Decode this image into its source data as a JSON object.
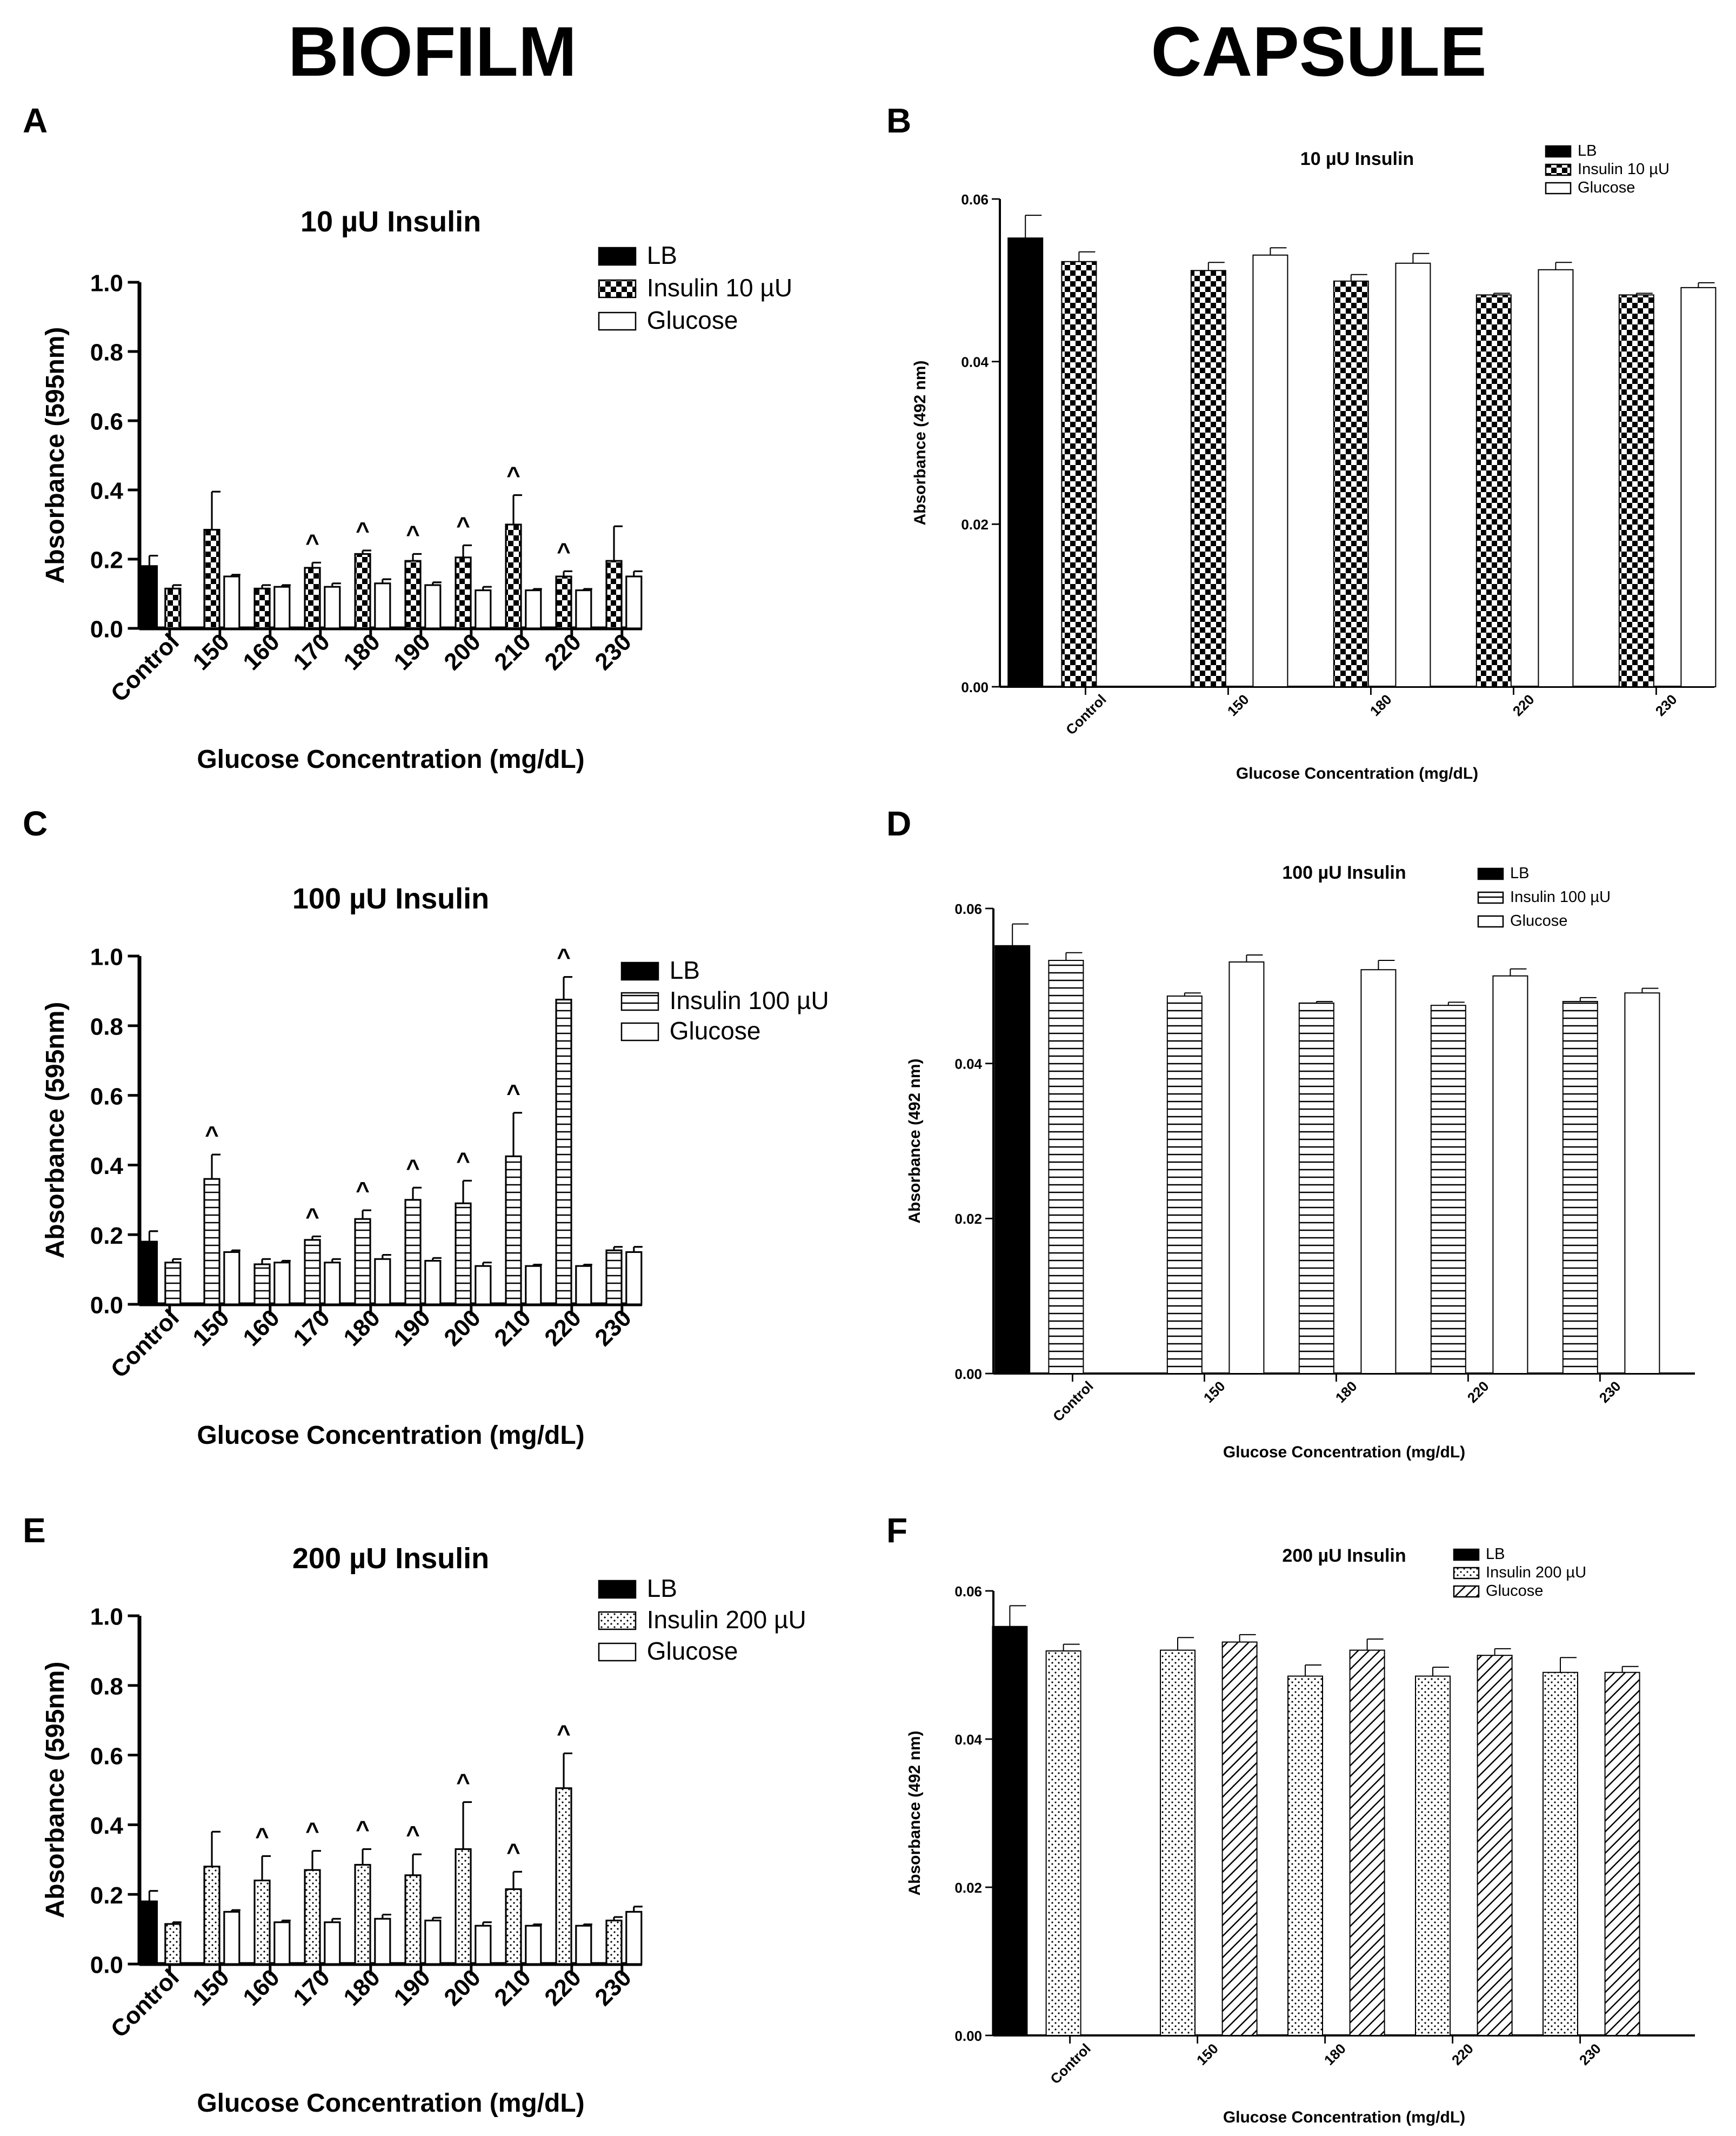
{
  "headers": {
    "left": "BIOFILM",
    "right": "CAPSULE"
  },
  "panels": [
    {
      "label": "A",
      "side": "left"
    },
    {
      "label": "B",
      "side": "right"
    },
    {
      "label": "C",
      "side": "left"
    },
    {
      "label": "D",
      "side": "right"
    },
    {
      "label": "E",
      "side": "left"
    },
    {
      "label": "F",
      "side": "right"
    }
  ],
  "colors": {
    "lb": "#000000",
    "axis": "#000000",
    "bar_outline": "#000000",
    "glucose": "#ffffff"
  },
  "chart_data": [
    {
      "panel": "A",
      "type": "bar",
      "title": "10 µU Insulin",
      "xlabel": "Glucose Concentration (mg/dL)",
      "ylabel": "Absorbance (595nm)",
      "ylim": [
        0,
        1.0
      ],
      "yticks": [
        "0.0",
        "0.2",
        "0.4",
        "0.6",
        "0.8",
        "1.0"
      ],
      "categories": [
        "Control",
        "150",
        "160",
        "170",
        "180",
        "190",
        "200",
        "210",
        "220",
        "230"
      ],
      "series": [
        {
          "name": "LB",
          "pattern": "solid",
          "values": [
            0.18,
            null,
            null,
            null,
            null,
            null,
            null,
            null,
            null,
            null
          ],
          "errors": [
            0.03,
            null,
            null,
            null,
            null,
            null,
            null,
            null,
            null,
            null
          ]
        },
        {
          "name": "Insulin 10 µU",
          "pattern": "checker",
          "values": [
            0.115,
            0.285,
            0.115,
            0.175,
            0.215,
            0.195,
            0.205,
            0.3,
            0.15,
            0.195
          ],
          "errors": [
            0.01,
            0.11,
            0.01,
            0.015,
            0.01,
            0.02,
            0.035,
            0.085,
            0.015,
            0.1
          ]
        },
        {
          "name": "Glucose",
          "pattern": "open",
          "values": [
            null,
            0.15,
            0.12,
            0.12,
            0.13,
            0.125,
            0.11,
            0.11,
            0.11,
            0.15
          ],
          "errors": [
            null,
            0.005,
            0.005,
            0.01,
            0.012,
            0.008,
            0.01,
            0.004,
            0.004,
            0.015
          ]
        }
      ],
      "annotations": [
        {
          "category": "170",
          "text": "^"
        },
        {
          "category": "180",
          "text": "^"
        },
        {
          "category": "190",
          "text": "^"
        },
        {
          "category": "200",
          "text": "^"
        },
        {
          "category": "210",
          "text": "^"
        },
        {
          "category": "220",
          "text": "^"
        }
      ]
    },
    {
      "panel": "B",
      "type": "bar",
      "title": "10 µU Insulin",
      "xlabel": "Glucose Concentration (mg/dL)",
      "ylabel": "Absorbance (492 nm)",
      "ylim": [
        0,
        0.06
      ],
      "yticks": [
        "0.00",
        "0.02",
        "0.04",
        "0.06"
      ],
      "categories": [
        "Control",
        "150",
        "180",
        "220",
        "230"
      ],
      "series": [
        {
          "name": "LB",
          "pattern": "solid",
          "values": [
            0.0552,
            null,
            null,
            null,
            null
          ],
          "errors": [
            0.0028,
            null,
            null,
            null,
            null
          ]
        },
        {
          "name": "Insulin 10 µU",
          "pattern": "checker",
          "values": [
            0.0523,
            0.0512,
            0.0499,
            0.0482,
            0.0482
          ],
          "errors": [
            0.0012,
            0.001,
            0.0008,
            0.0002,
            0.0002
          ]
        },
        {
          "name": "Glucose",
          "pattern": "open",
          "values": [
            null,
            0.0531,
            0.0521,
            0.0513,
            0.0491
          ],
          "errors": [
            null,
            0.0009,
            0.0012,
            0.0009,
            0.0006
          ]
        }
      ],
      "annotations": []
    },
    {
      "panel": "C",
      "type": "bar",
      "title": "100 µU Insulin",
      "xlabel": "Glucose Concentration (mg/dL)",
      "ylabel": "Absorbance (595nm)",
      "ylim": [
        0,
        1.0
      ],
      "yticks": [
        "0.0",
        "0.2",
        "0.4",
        "0.6",
        "0.8",
        "1.0"
      ],
      "categories": [
        "Control",
        "150",
        "160",
        "170",
        "180",
        "190",
        "200",
        "210",
        "220",
        "230"
      ],
      "series": [
        {
          "name": "LB",
          "pattern": "solid",
          "values": [
            0.18,
            null,
            null,
            null,
            null,
            null,
            null,
            null,
            null,
            null
          ],
          "errors": [
            0.03,
            null,
            null,
            null,
            null,
            null,
            null,
            null,
            null,
            null
          ]
        },
        {
          "name": "Insulin 100 µU",
          "pattern": "hlines",
          "values": [
            0.12,
            0.36,
            0.115,
            0.185,
            0.245,
            0.3,
            0.29,
            0.425,
            0.875,
            0.155
          ],
          "errors": [
            0.01,
            0.07,
            0.015,
            0.01,
            0.025,
            0.035,
            0.065,
            0.125,
            0.065,
            0.01
          ]
        },
        {
          "name": "Glucose",
          "pattern": "open",
          "values": [
            null,
            0.15,
            0.12,
            0.12,
            0.13,
            0.125,
            0.11,
            0.11,
            0.11,
            0.15
          ],
          "errors": [
            null,
            0.005,
            0.005,
            0.01,
            0.012,
            0.008,
            0.01,
            0.004,
            0.004,
            0.015
          ]
        }
      ],
      "annotations": [
        {
          "category": "150",
          "text": "^"
        },
        {
          "category": "170",
          "text": "^"
        },
        {
          "category": "180",
          "text": "^"
        },
        {
          "category": "190",
          "text": "^"
        },
        {
          "category": "200",
          "text": "^"
        },
        {
          "category": "210",
          "text": "^"
        },
        {
          "category": "220",
          "text": "^"
        }
      ]
    },
    {
      "panel": "D",
      "type": "bar",
      "title": "100 µU Insulin",
      "xlabel": "Glucose Concentration (mg/dL)",
      "ylabel": "Absorbance (492 nm)",
      "ylim": [
        0,
        0.06
      ],
      "yticks": [
        "0.00",
        "0.02",
        "0.04",
        "0.06"
      ],
      "categories": [
        "Control",
        "150",
        "180",
        "220",
        "230"
      ],
      "series": [
        {
          "name": "LB",
          "pattern": "solid",
          "values": [
            0.0552,
            null,
            null,
            null,
            null
          ],
          "errors": [
            0.0028,
            null,
            null,
            null,
            null
          ]
        },
        {
          "name": "Insulin 100 µU",
          "pattern": "hlines",
          "values": [
            0.0533,
            0.0487,
            0.0478,
            0.0475,
            0.048
          ],
          "errors": [
            0.001,
            0.0004,
            0.0002,
            0.0004,
            0.0005
          ]
        },
        {
          "name": "Glucose",
          "pattern": "open",
          "values": [
            null,
            0.0531,
            0.0521,
            0.0513,
            0.0491
          ],
          "errors": [
            null,
            0.0009,
            0.0012,
            0.0009,
            0.0006
          ]
        }
      ],
      "annotations": []
    },
    {
      "panel": "E",
      "type": "bar",
      "title": "200 µU Insulin",
      "xlabel": "Glucose Concentration (mg/dL)",
      "ylabel": "Absorbance (595nm)",
      "ylim": [
        0,
        1.0
      ],
      "yticks": [
        "0.0",
        "0.2",
        "0.4",
        "0.6",
        "0.8",
        "1.0"
      ],
      "categories": [
        "Control",
        "150",
        "160",
        "170",
        "180",
        "190",
        "200",
        "210",
        "220",
        "230"
      ],
      "series": [
        {
          "name": "LB",
          "pattern": "solid",
          "values": [
            0.18,
            null,
            null,
            null,
            null,
            null,
            null,
            null,
            null,
            null
          ],
          "errors": [
            0.03,
            null,
            null,
            null,
            null,
            null,
            null,
            null,
            null,
            null
          ]
        },
        {
          "name": "Insulin 200 µU",
          "pattern": "dots",
          "values": [
            0.115,
            0.28,
            0.24,
            0.27,
            0.285,
            0.255,
            0.33,
            0.215,
            0.505,
            0.125
          ],
          "errors": [
            0.005,
            0.1,
            0.07,
            0.055,
            0.045,
            0.06,
            0.135,
            0.05,
            0.1,
            0.01
          ]
        },
        {
          "name": "Glucose",
          "pattern": "open",
          "values": [
            null,
            0.15,
            0.12,
            0.12,
            0.13,
            0.125,
            0.11,
            0.11,
            0.11,
            0.15
          ],
          "errors": [
            null,
            0.005,
            0.005,
            0.01,
            0.012,
            0.008,
            0.01,
            0.004,
            0.004,
            0.015
          ]
        }
      ],
      "annotations": [
        {
          "category": "160",
          "text": "^"
        },
        {
          "category": "170",
          "text": "^"
        },
        {
          "category": "180",
          "text": "^"
        },
        {
          "category": "190",
          "text": "^"
        },
        {
          "category": "200",
          "text": "^"
        },
        {
          "category": "210",
          "text": "^"
        },
        {
          "category": "220",
          "text": "^"
        }
      ]
    },
    {
      "panel": "F",
      "type": "bar",
      "title": "200 µU Insulin",
      "xlabel": "Glucose Concentration (mg/dL)",
      "ylabel": "Absorbance (492 nm)",
      "ylim": [
        0,
        0.06
      ],
      "yticks": [
        "0.00",
        "0.02",
        "0.04",
        "0.06"
      ],
      "categories": [
        "Control",
        "150",
        "180",
        "220",
        "230"
      ],
      "series": [
        {
          "name": "LB",
          "pattern": "solid",
          "values": [
            0.0552,
            null,
            null,
            null,
            null
          ],
          "errors": [
            0.0028,
            null,
            null,
            null,
            null
          ]
        },
        {
          "name": "Insulin 200 µU",
          "pattern": "dots",
          "values": [
            0.0519,
            0.052,
            0.0485,
            0.0485,
            0.049
          ],
          "errors": [
            0.0009,
            0.0017,
            0.0015,
            0.0012,
            0.002
          ]
        },
        {
          "name": "Glucose",
          "pattern": "diag",
          "values": [
            null,
            0.0531,
            0.052,
            0.0513,
            0.049
          ],
          "errors": [
            null,
            0.001,
            0.0015,
            0.0009,
            0.0008
          ]
        }
      ],
      "annotations": []
    }
  ]
}
